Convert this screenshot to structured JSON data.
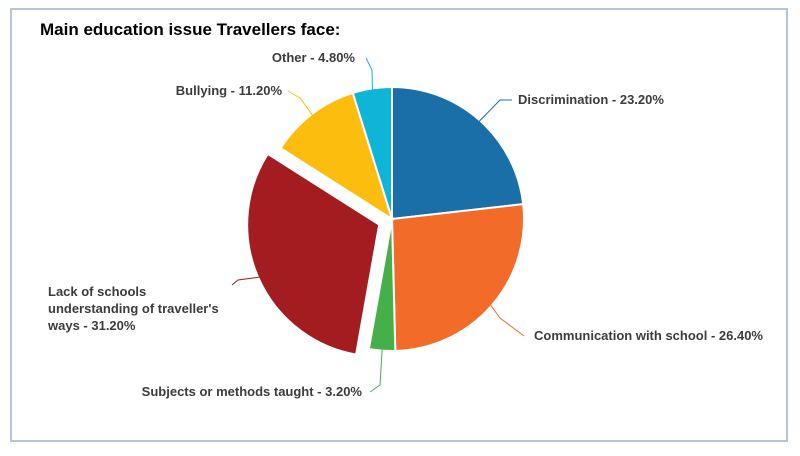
{
  "chart_data": {
    "type": "pie",
    "title": "Main education issue Travellers face:",
    "slices": [
      {
        "label": "Discrimination - 23.20%",
        "value": 23.2,
        "color": "#1a6fa8",
        "exploded": false
      },
      {
        "label": "Communication with school - 26.40%",
        "value": 26.4,
        "color": "#f26b28",
        "exploded": false
      },
      {
        "label": "Subjects or methods taught - 3.20%",
        "value": 3.2,
        "color": "#45b04a",
        "exploded": false
      },
      {
        "label": "Lack of schools understanding of traveller's ways - 31.20%",
        "label_lines": [
          "Lack of schools",
          "understanding of traveller's",
          "ways - 31.20%"
        ],
        "value": 31.2,
        "color": "#a31c1f",
        "exploded": true
      },
      {
        "label": "Bullying - 11.20%",
        "value": 11.2,
        "color": "#fdbd0f",
        "exploded": false
      },
      {
        "label": "Other - 4.80%",
        "value": 4.8,
        "color": "#0fb5d6",
        "exploded": false
      }
    ],
    "start_angle_deg": 0,
    "direction": "clockwise",
    "legend": "none"
  }
}
